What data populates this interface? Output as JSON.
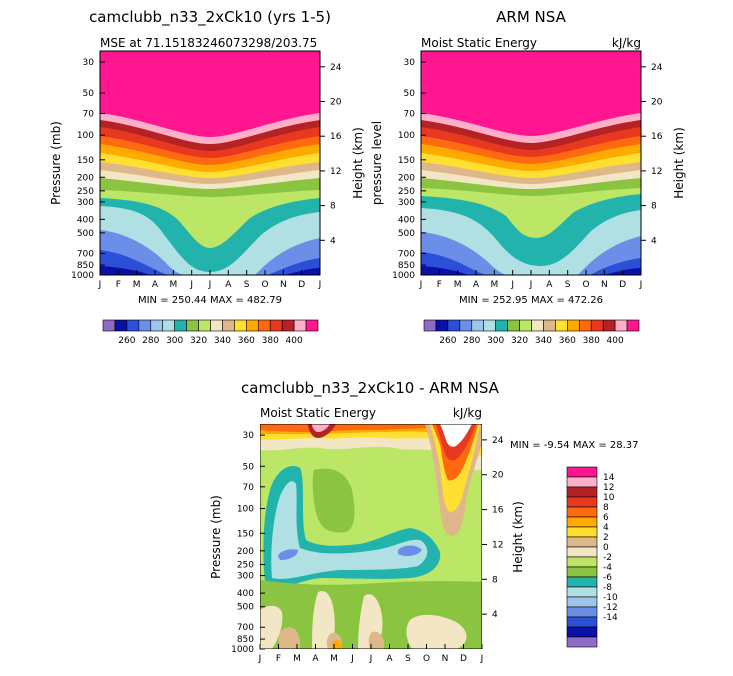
{
  "chart_data": [
    {
      "type": "contour",
      "title": "camclubb_n33_2xCk10 (yrs 1-5)",
      "subtitle_left": "MSE at 71.15183246073298/203.75",
      "subtitle_right": "",
      "ylabel_left": "Pressure (mb)",
      "ylabel_right": "Height (km)",
      "x_ticks": [
        "J",
        "F",
        "M",
        "A",
        "M",
        "J",
        "J",
        "A",
        "S",
        "O",
        "N",
        "D",
        "J"
      ],
      "pressure_ticks": [
        "30",
        "50",
        "70",
        "100",
        "150",
        "200",
        "250",
        "300",
        "400",
        "500",
        "700",
        "850",
        "1000"
      ],
      "pressure_values": [
        30,
        50,
        70,
        100,
        150,
        200,
        250,
        300,
        400,
        500,
        700,
        850,
        1000
      ],
      "height_ticks": [
        "24",
        "20",
        "16",
        "12",
        "8",
        "4"
      ],
      "height_values": [
        24,
        20,
        16,
        12,
        8,
        4
      ],
      "min_label": "MIN = 250.44 MAX = 482.79",
      "colorbar_labels": [
        "260",
        "280",
        "300",
        "320",
        "340",
        "360",
        "380",
        "400"
      ]
    },
    {
      "type": "contour",
      "title": "ARM NSA",
      "subtitle_left": "Moist Static Energy",
      "subtitle_right": "kJ/kg",
      "ylabel_left": "pressure level",
      "ylabel_right": "Height (km)",
      "x_ticks": [
        "J",
        "F",
        "M",
        "A",
        "M",
        "J",
        "J",
        "A",
        "S",
        "O",
        "N",
        "D",
        "J"
      ],
      "pressure_ticks": [
        "30",
        "50",
        "70",
        "100",
        "150",
        "200",
        "250",
        "300",
        "400",
        "500",
        "700",
        "850",
        "1000"
      ],
      "pressure_values": [
        30,
        50,
        70,
        100,
        150,
        200,
        250,
        300,
        400,
        500,
        700,
        850,
        1000
      ],
      "height_ticks": [
        "24",
        "20",
        "16",
        "12",
        "8",
        "4"
      ],
      "height_values": [
        24,
        20,
        16,
        12,
        8,
        4
      ],
      "min_label": "MIN = 252.95 MAX = 472.26",
      "colorbar_labels": [
        "260",
        "280",
        "300",
        "320",
        "340",
        "360",
        "380",
        "400"
      ]
    },
    {
      "type": "contour",
      "title": "camclubb_n33_2xCk10 - ARM NSA",
      "subtitle_left": "Moist Static Energy",
      "subtitle_right": "kJ/kg",
      "ylabel_left": "Pressure (mb)",
      "ylabel_right": "Height (km)",
      "x_ticks": [
        "J",
        "F",
        "M",
        "A",
        "M",
        "J",
        "J",
        "A",
        "S",
        "O",
        "N",
        "D",
        "J"
      ],
      "pressure_ticks": [
        "30",
        "50",
        "70",
        "100",
        "150",
        "200",
        "250",
        "300",
        "400",
        "500",
        "700",
        "850",
        "1000"
      ],
      "pressure_values": [
        30,
        50,
        70,
        100,
        150,
        200,
        250,
        300,
        400,
        500,
        700,
        850,
        1000
      ],
      "height_ticks": [
        "24",
        "20",
        "16",
        "12",
        "8",
        "4"
      ],
      "height_values": [
        24,
        20,
        16,
        12,
        8,
        4
      ],
      "min_label": "MIN =   -9.54 MAX =   28.37",
      "colorbar_labels": [
        "14",
        "12",
        "10",
        "8",
        "6",
        "4",
        "2",
        "0",
        "-2",
        "-4",
        "-6",
        "-8",
        "-10",
        "-12",
        "-14"
      ]
    }
  ],
  "palette_abs": [
    "#8e6cc6",
    "#0a0fa6",
    "#2c4fd8",
    "#6b8fe8",
    "#9ec6ec",
    "#b0e0e4",
    "#22b4ac",
    "#8ac440",
    "#bbe666",
    "#f2e6c4",
    "#deb88a",
    "#ffe030",
    "#ffaa00",
    "#ff6a10",
    "#e83820",
    "#b42224",
    "#ffb0c8",
    "#ff1690"
  ],
  "palette_diff": [
    "#ff1690",
    "#ffb0c8",
    "#b42224",
    "#e83820",
    "#ff6a10",
    "#ffaa00",
    "#ffe030",
    "#deb88a",
    "#f2e6c4",
    "#bbe666",
    "#8ac440",
    "#22b4ac",
    "#b0e0e4",
    "#9ec6ec",
    "#6b8fe8",
    "#2c4fd8",
    "#0a0fa6",
    "#8e6cc6"
  ]
}
